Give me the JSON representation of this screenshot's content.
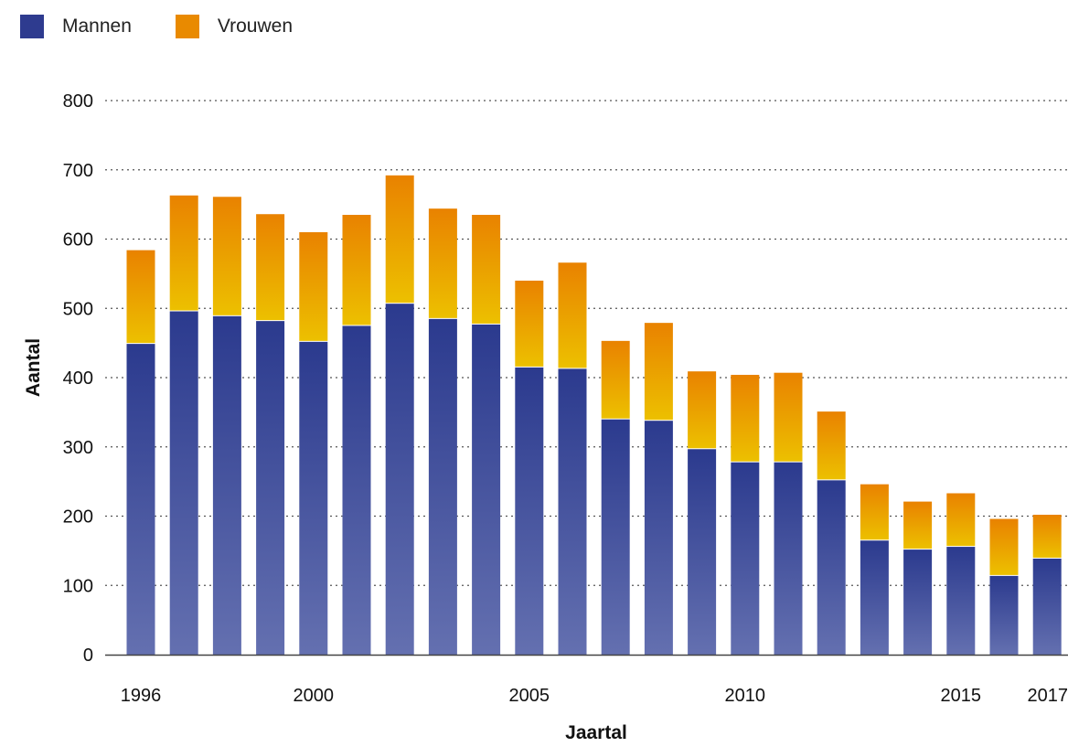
{
  "chart_data": {
    "type": "bar",
    "stacked": true,
    "categories": [
      "1996",
      "1997",
      "1998",
      "1999",
      "2000",
      "2001",
      "2002",
      "2003",
      "2004",
      "2005",
      "2006",
      "2007",
      "2008",
      "2009",
      "2010",
      "2011",
      "2012",
      "2013",
      "2014",
      "2015",
      "2016",
      "2017"
    ],
    "x_tick_labels": [
      "1996",
      "2000",
      "2005",
      "2010",
      "2015",
      "2017"
    ],
    "series": [
      {
        "name": "Mannen",
        "color": "#2e3b8f",
        "values": [
          450,
          497,
          490,
          483,
          453,
          476,
          508,
          486,
          478,
          416,
          414,
          341,
          339,
          298,
          279,
          279,
          253,
          166,
          153,
          157,
          115,
          140
        ]
      },
      {
        "name": "Vrouwen",
        "color": "#e98a00",
        "values": [
          134,
          166,
          171,
          153,
          157,
          159,
          184,
          158,
          157,
          124,
          152,
          112,
          140,
          111,
          125,
          128,
          98,
          80,
          68,
          76,
          81,
          62
        ]
      }
    ],
    "xlabel": "Jaartal",
    "ylabel": "Aantal",
    "ylim": [
      0,
      800
    ],
    "y_ticks": [
      0,
      100,
      200,
      300,
      400,
      500,
      600,
      700,
      800
    ],
    "grid": true,
    "legend_position": "top-left"
  }
}
